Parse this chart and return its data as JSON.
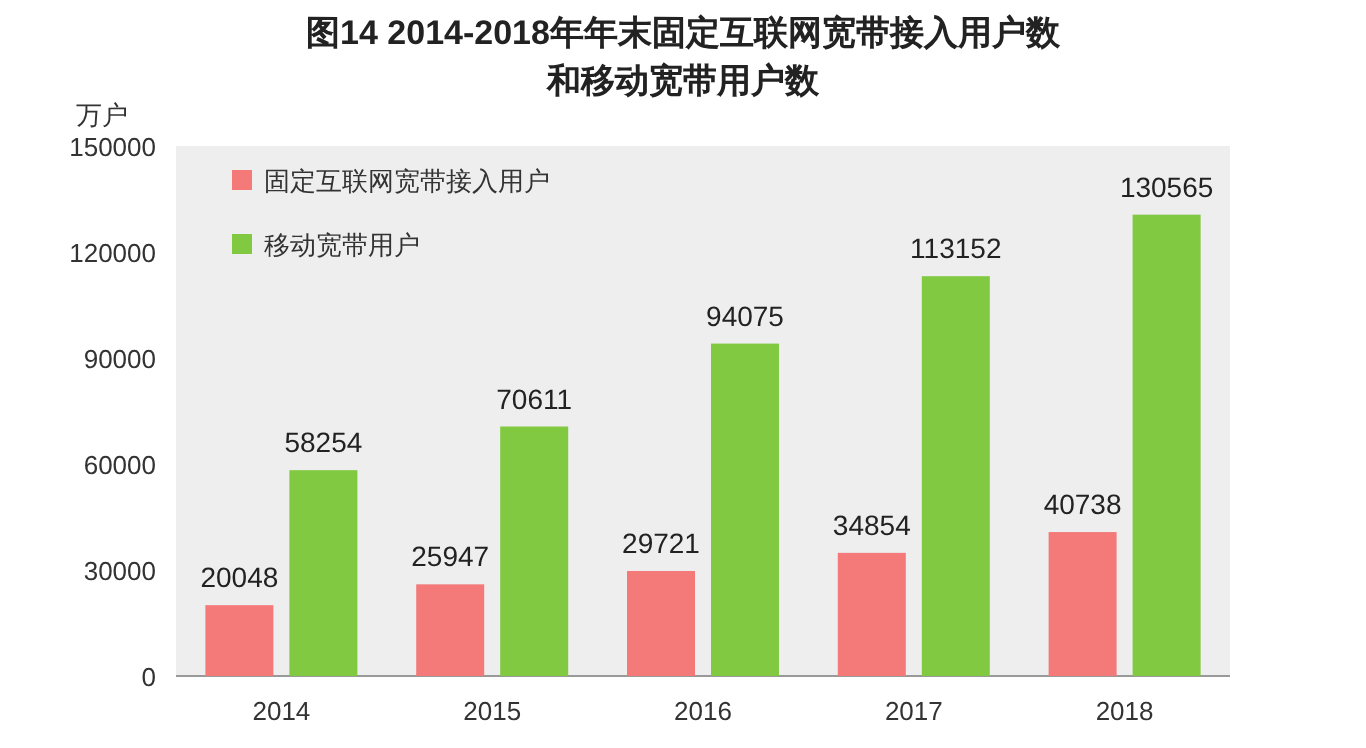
{
  "chart_data": {
    "type": "bar",
    "title": "图14 2014-2018年年末固定互联网宽带接入用户数",
    "subtitle": "和移动宽带用户数",
    "ylabel": "万户",
    "categories": [
      "2014",
      "2015",
      "2016",
      "2017",
      "2018"
    ],
    "series": [
      {
        "name": "固定互联网宽带接入用户",
        "color": "#f47a7a",
        "values": [
          20048,
          25947,
          29721,
          34854,
          40738
        ]
      },
      {
        "name": "移动宽带用户",
        "color": "#80c940",
        "values": [
          58254,
          70611,
          94075,
          113152,
          130565
        ]
      }
    ],
    "ylim": [
      0,
      150000
    ],
    "yticks": [
      0,
      30000,
      60000,
      90000,
      120000,
      150000
    ],
    "data_labels": true,
    "legend": "top left",
    "grid": false
  }
}
